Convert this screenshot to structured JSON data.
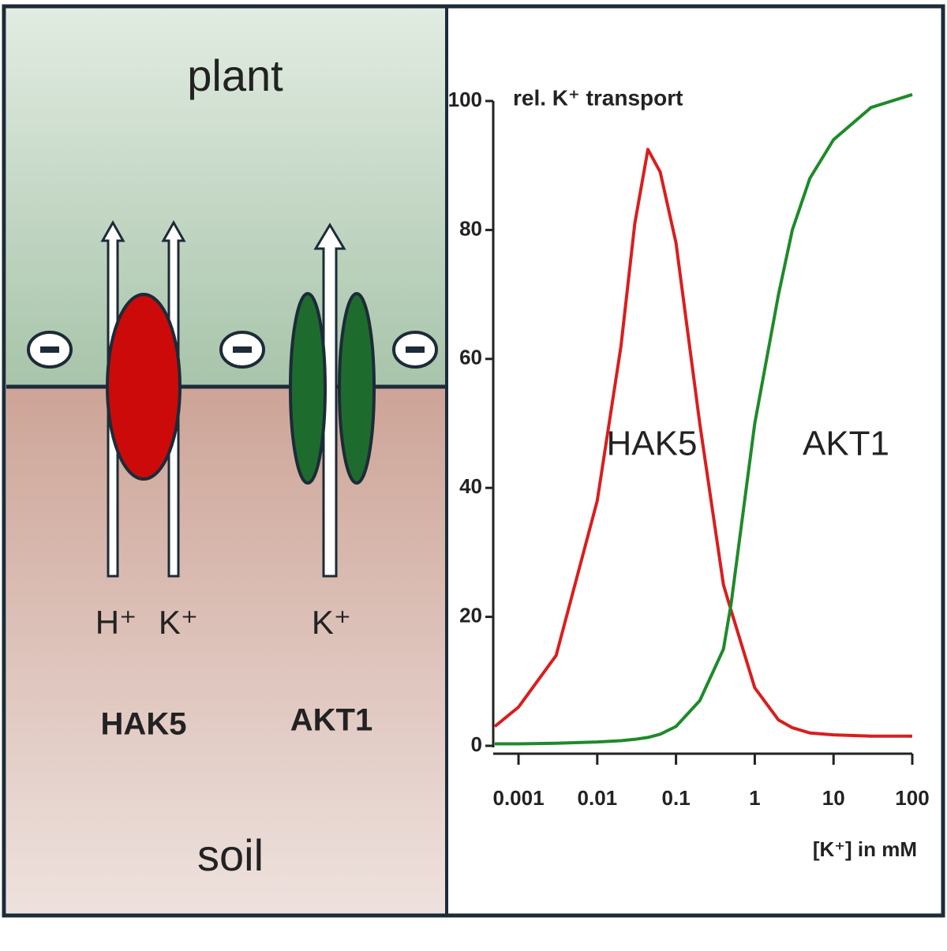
{
  "diagram": {
    "top_label": "plant",
    "bottom_label": "soil",
    "transporters": [
      {
        "name": "HAK5",
        "ions": [
          "H⁺",
          "K⁺"
        ]
      },
      {
        "name": "AKT1",
        "ions": [
          "K⁺"
        ]
      }
    ]
  },
  "chart_data": {
    "type": "line",
    "y_label": "rel. K⁺ transport",
    "x_label": "[K⁺] in mM",
    "log_x": true,
    "x": [
      0.0005,
      0.001,
      0.003,
      0.01,
      0.02,
      0.03,
      0.044,
      0.063,
      0.1,
      0.2,
      0.4,
      0.5,
      1,
      2,
      3,
      5,
      10,
      30,
      100
    ],
    "series": [
      {
        "name": "HAK5",
        "color": "#d91e1e",
        "values": [
          3,
          6,
          14,
          38,
          62,
          81,
          92.5,
          89,
          78,
          50,
          25,
          21,
          9,
          4,
          2.8,
          2,
          1.7,
          1.5,
          1.5
        ]
      },
      {
        "name": "AKT1",
        "color": "#1f8a2a",
        "values": [
          0.3,
          0.3,
          0.4,
          0.6,
          0.8,
          1,
          1.3,
          1.8,
          3,
          7,
          15,
          22,
          50,
          70,
          80,
          88,
          94,
          99,
          101
        ]
      }
    ],
    "xlim": [
      0.0005,
      100
    ],
    "xticks": [
      0.001,
      0.01,
      0.1,
      1,
      10,
      100
    ],
    "ylim": [
      0,
      100
    ],
    "yticks": [
      0,
      20,
      40,
      60,
      80,
      100
    ]
  }
}
